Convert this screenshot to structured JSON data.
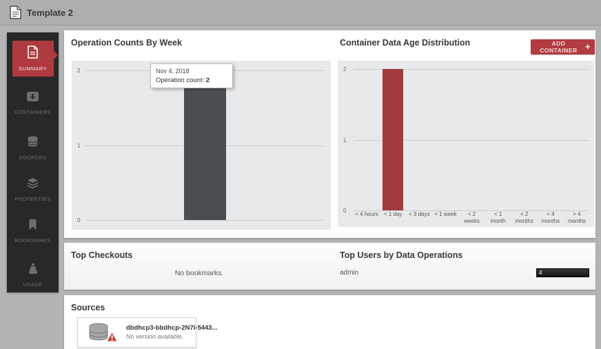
{
  "header": {
    "title": "Template 2"
  },
  "sidebar": {
    "items": [
      {
        "label": "SUMMARY",
        "icon": "summary-document-icon",
        "active": true
      },
      {
        "label": "CONTAINERS",
        "icon": "containers-icon",
        "active": false
      },
      {
        "label": "SOURCES",
        "icon": "sources-database-icon",
        "active": false
      },
      {
        "label": "PROPERTIES",
        "icon": "properties-layers-icon",
        "active": false
      },
      {
        "label": "BOOKMARKS",
        "icon": "bookmarks-icon",
        "active": false
      },
      {
        "label": "USAGE",
        "icon": "usage-icon",
        "active": false
      }
    ]
  },
  "actions": {
    "add_container_label": "ADD CONTAINER",
    "add_container_plus": "+"
  },
  "chart_data": [
    {
      "type": "bar",
      "title": "Operation Counts By Week",
      "categories": [
        "Week of Nov 4, 2018"
      ],
      "values": [
        2
      ],
      "ylim": [
        0,
        2
      ],
      "yticks": [
        0,
        1,
        2
      ],
      "bar_color": "#4b4e50",
      "plot_bg": "#e8e9ea",
      "grid": true,
      "x_tick_labels_visible": false,
      "tooltip": {
        "date": "Nov 4, 2018",
        "label": "Operation count:",
        "value": "2"
      }
    },
    {
      "type": "bar",
      "title": "Container Data Age Distribution",
      "categories": [
        "< 4 hours",
        "< 1 day",
        "< 3 days",
        "< 1 week",
        "< 2 weeks",
        "< 1 month",
        "< 2 months",
        "< 4 months",
        "> 4 months"
      ],
      "category_lines": [
        [
          "< 4 hours"
        ],
        [
          "< 1 day"
        ],
        [
          "< 3 days"
        ],
        [
          "< 1 week"
        ],
        [
          "< 2",
          "weeks"
        ],
        [
          "< 1",
          "month"
        ],
        [
          "< 2",
          "months"
        ],
        [
          "< 4",
          "months"
        ],
        [
          "> 4",
          "months"
        ]
      ],
      "values": [
        0,
        2,
        0,
        0,
        0,
        0,
        0,
        0,
        0
      ],
      "ylim": [
        0,
        2
      ],
      "yticks": [
        0,
        1,
        2
      ],
      "bar_color": "#a33a40",
      "plot_bg": "#e8e9ea",
      "grid": true,
      "x_tick_labels_visible": true
    }
  ],
  "checkouts": {
    "title": "Top Checkouts",
    "empty_message": "No bookmarks."
  },
  "top_users": {
    "title": "Top Users by Data Operations",
    "rows": [
      {
        "user": "admin",
        "value": "4"
      }
    ]
  },
  "sources": {
    "title": "Sources",
    "cards": [
      {
        "name": "dbdhcp3-bbdhcp-2N7I-5443...",
        "status": "No version available."
      }
    ]
  },
  "colors": {
    "accent_red": "#ae3a3f",
    "dark_bar": "#4b4e50",
    "red_bar": "#a33a40",
    "sidebar_bg": "#282828",
    "usage_bar_bg": "#1a1a1a"
  }
}
